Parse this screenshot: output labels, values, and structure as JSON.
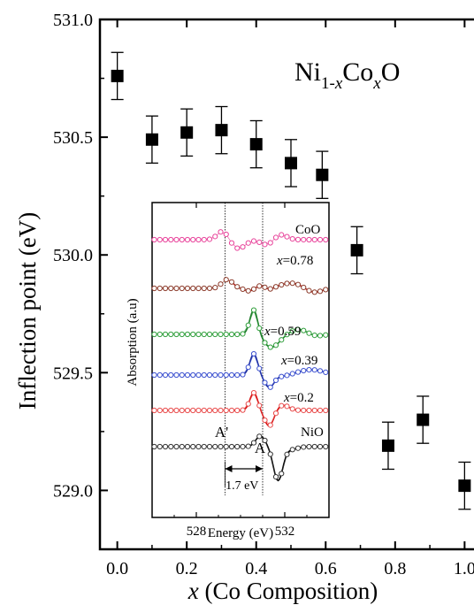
{
  "chart_data": [
    {
      "type": "scatter",
      "title": "",
      "annotation_parts": [
        "Ni",
        "1-x",
        "Co",
        "x",
        "O"
      ],
      "xlabel_var": "x",
      "xlabel_rest": " (Co Composition)",
      "ylabel": "Inflection point (eV)",
      "xlim": [
        -0.05,
        1.05
      ],
      "ylim": [
        528.75,
        531.0
      ],
      "xticks": [
        0.0,
        0.2,
        0.4,
        0.6,
        0.8,
        1.0
      ],
      "xtick_labels": [
        "0.0",
        "0.2",
        "0.4",
        "0.6",
        "0.8",
        "1.0"
      ],
      "yticks": [
        529.0,
        529.5,
        530.0,
        530.5,
        531.0
      ],
      "ytick_labels": [
        "529.0",
        "529.5",
        "530.0",
        "530.5",
        "531.0"
      ],
      "series": [
        {
          "marker": "filled-square",
          "x": [
            0.0,
            0.1,
            0.2,
            0.3,
            0.4,
            0.5,
            0.59,
            0.69,
            0.78,
            0.88,
            1.0
          ],
          "y": [
            530.76,
            530.49,
            530.52,
            530.53,
            530.47,
            530.39,
            530.34,
            530.02,
            529.19,
            529.3,
            529.02
          ],
          "error": [
            0.1,
            0.1,
            0.1,
            0.1,
            0.1,
            0.1,
            0.1,
            0.1,
            0.1,
            0.1,
            0.1
          ]
        }
      ],
      "grid": false
    },
    {
      "type": "line",
      "inset": true,
      "xlabel": "Energy (eV)",
      "ylabel": "Absorption (a.u)",
      "xlim": [
        526.0,
        534.0
      ],
      "xticks": [
        528,
        532
      ],
      "xtick_labels": [
        "528",
        "532"
      ],
      "reference_lines_x": [
        529.3,
        531.0
      ],
      "peak_labels": [
        "A'",
        "A"
      ],
      "gap_label": "1.7 eV",
      "series": [
        {
          "name": "CoO",
          "color": "#e8429a",
          "fit_color": "",
          "offset": 5
        },
        {
          "name": "x=0.78",
          "color": "#8b3a2a",
          "fit_color": "#d62020",
          "offset": 4
        },
        {
          "name": "x=0.59",
          "color": "#2e9e3a",
          "fit_color": "#1e7a2a",
          "offset": 3
        },
        {
          "name": "x=0.39",
          "color": "#3a4fcf",
          "fit_color": "#1a2a9a",
          "offset": 2
        },
        {
          "name": "x=0.2",
          "color": "#e84a4a",
          "fit_color": "#d61010",
          "offset": 1
        },
        {
          "name": "NiO",
          "color": "#333333",
          "fit_color": "#000000",
          "offset": 0
        }
      ]
    }
  ]
}
